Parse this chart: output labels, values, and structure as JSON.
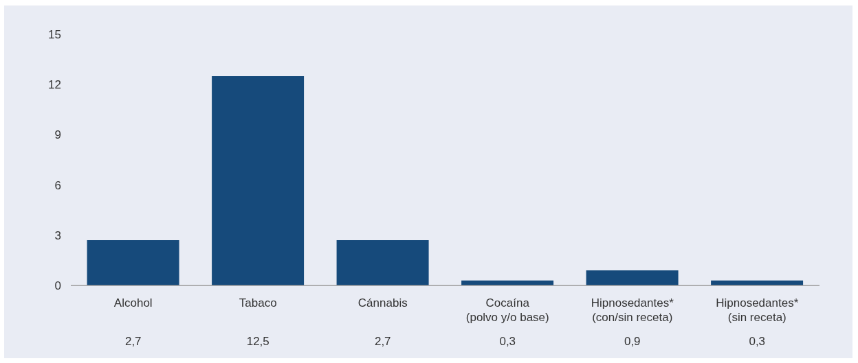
{
  "chart_data": {
    "type": "bar",
    "categories": [
      "Alcohol",
      "Tabaco",
      "Cánnabis",
      "Cocaína\n(polvo y/o base)",
      "Hipnosedantes*\n(con/sin receta)",
      "Hipnosedantes*\n(sin receta)"
    ],
    "values": [
      2.7,
      12.5,
      2.7,
      0.3,
      0.9,
      0.3
    ],
    "value_labels": [
      "2,7",
      "12,5",
      "2,7",
      "0,3",
      "0,9",
      "0,3"
    ],
    "color": "#164a7b",
    "ylim": [
      0,
      15
    ],
    "yticks": [
      0,
      3,
      6,
      9,
      12,
      15
    ]
  }
}
